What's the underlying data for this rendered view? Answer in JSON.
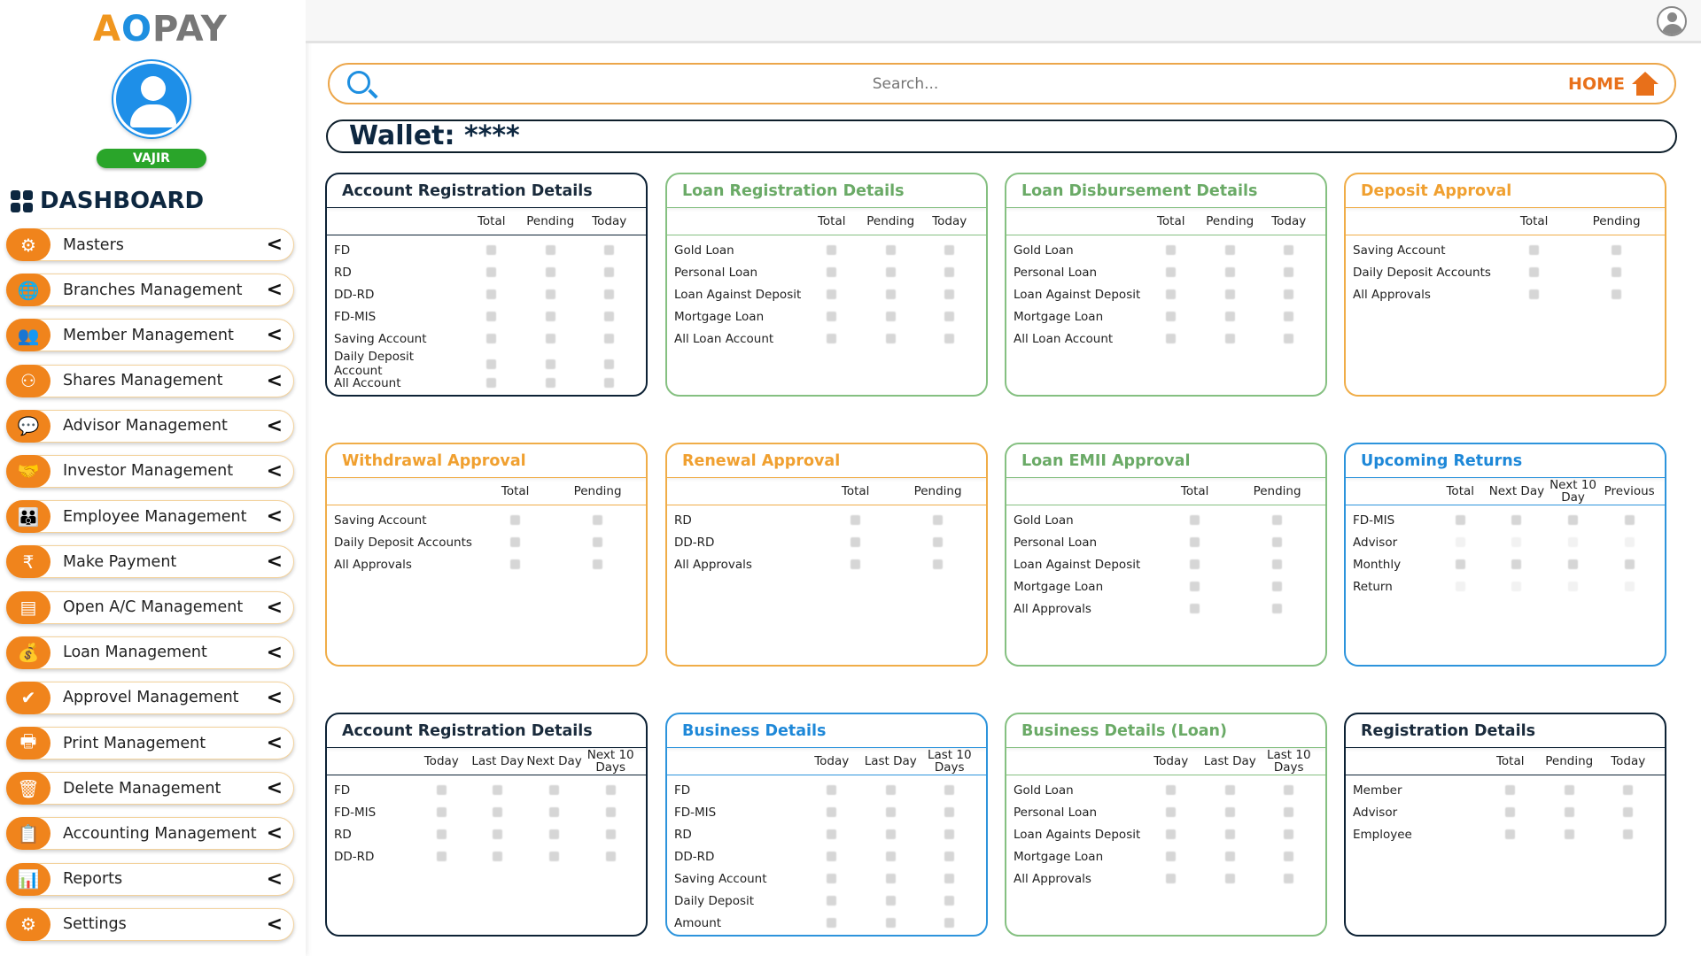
{
  "logo": {
    "text": "AOPAY",
    "part_a": "A",
    "part_o": "O",
    "part_pay": "PAY"
  },
  "user": {
    "name": "VAJIR"
  },
  "sidebar": {
    "heading": "DASHBOARD",
    "items": [
      {
        "label": "Masters",
        "icon": "user-gear-icon",
        "glyph": "⚙"
      },
      {
        "label": "Branches Management",
        "icon": "globe-icon",
        "glyph": "🌐"
      },
      {
        "label": "Member Management",
        "icon": "members-icon",
        "glyph": "👥"
      },
      {
        "label": "Shares Management",
        "icon": "share-network-icon",
        "glyph": "⚇"
      },
      {
        "label": "Advisor Management",
        "icon": "advisor-icon",
        "glyph": "💬"
      },
      {
        "label": "Investor Management",
        "icon": "investor-icon",
        "glyph": "🤝"
      },
      {
        "label": "Employee Management",
        "icon": "employee-icon",
        "glyph": "👪"
      },
      {
        "label": "Make Payment",
        "icon": "rupee-icon",
        "glyph": "₹"
      },
      {
        "label": "Open A/C Management",
        "icon": "account-icon",
        "glyph": "▤"
      },
      {
        "label": "Loan Management",
        "icon": "loan-icon",
        "glyph": "💰"
      },
      {
        "label": "Approvel Management",
        "icon": "approval-icon",
        "glyph": "✔"
      },
      {
        "label": "Print Management",
        "icon": "printer-icon",
        "glyph": "🖶"
      },
      {
        "label": "Delete Management",
        "icon": "trash-icon",
        "glyph": "🗑"
      },
      {
        "label": "Accounting Management",
        "icon": "accounting-icon",
        "glyph": "📋"
      },
      {
        "label": "Reports",
        "icon": "reports-icon",
        "glyph": "📊"
      },
      {
        "label": "Settings",
        "icon": "settings-icon",
        "glyph": "⚙"
      }
    ],
    "chevron": "<"
  },
  "search": {
    "placeholder": "Search...",
    "home_label": "HOME"
  },
  "wallet": {
    "label": "Wallet: ****"
  },
  "colors": {
    "navy": "#0d2235",
    "green": "#85c081",
    "orange": "#f0ad48",
    "blue": "#2d94dc",
    "sidebar_accent": "#f0841c",
    "user_badge": "#2aa52a"
  },
  "cards": [
    {
      "title": "Account Registration Details",
      "theme": "navy",
      "columns": [
        "Total",
        "Pending",
        "Today"
      ],
      "rows": [
        "FD",
        "RD",
        "DD-RD",
        "FD-MIS",
        "Saving Account",
        "Daily Deposit Account",
        "All Account"
      ]
    },
    {
      "title": "Loan Registration Details",
      "theme": "green",
      "columns": [
        "Total",
        "Pending",
        "Today"
      ],
      "rows": [
        "Gold Loan",
        "Personal Loan",
        "Loan Against Deposit",
        "Mortgage Loan",
        "All Loan Account"
      ]
    },
    {
      "title": "Loan Disbursement Details",
      "theme": "green",
      "columns": [
        "Total",
        "Pending",
        "Today"
      ],
      "rows": [
        "Gold Loan",
        "Personal Loan",
        "Loan Against Deposit",
        "Mortgage Loan",
        "All Loan Account"
      ]
    },
    {
      "title": "Deposit Approval",
      "theme": "orange",
      "columns": [
        "Total",
        "Pending"
      ],
      "rows": [
        "Saving Account",
        "Daily Deposit Accounts",
        "All Approvals"
      ]
    },
    {
      "title": "Withdrawal Approval",
      "theme": "orange",
      "columns": [
        "Total",
        "Pending"
      ],
      "rows": [
        "Saving Account",
        "Daily Deposit Accounts",
        "All Approvals"
      ]
    },
    {
      "title": "Renewal Approval",
      "theme": "orange",
      "columns": [
        "Total",
        "Pending"
      ],
      "rows": [
        "RD",
        "DD-RD",
        "All Approvals"
      ]
    },
    {
      "title": "Loan EMII Approval",
      "theme": "green",
      "columns": [
        "Total",
        "Pending"
      ],
      "rows": [
        "Gold Loan",
        "Personal Loan",
        "Loan Against Deposit",
        "Mortgage Loan",
        "All Approvals"
      ]
    },
    {
      "title": "Upcoming Returns",
      "theme": "blue",
      "columns": [
        "Total",
        "Next Day",
        "Next 10 Day",
        "Previous"
      ],
      "rows": [
        "FD-MIS",
        "Advisor",
        "Monthly",
        "Return"
      ],
      "faint_rows": [
        1,
        3
      ]
    },
    {
      "title": "Account Registration Details",
      "theme": "navy",
      "columns": [
        "Today",
        "Last Day",
        "Next Day",
        "Next 10 Days"
      ],
      "rows": [
        "FD",
        "FD-MIS",
        "RD",
        "DD-RD"
      ]
    },
    {
      "title": "Business Details",
      "theme": "blue",
      "columns": [
        "Today",
        "Last Day",
        "Last 10 Days"
      ],
      "rows": [
        "FD",
        "FD-MIS",
        "RD",
        "DD-RD",
        "Saving Account",
        "Daily Deposit",
        "Amount"
      ]
    },
    {
      "title": "Business Details (Loan)",
      "theme": "green",
      "columns": [
        "Today",
        "Last Day",
        "Last 10 Days"
      ],
      "rows": [
        "Gold  Loan",
        "Personal Loan",
        "Loan Againts Deposit",
        "Mortgage Loan",
        "All Approvals"
      ]
    },
    {
      "title": "Registration Details",
      "theme": "navy",
      "columns": [
        "Total",
        "Pending",
        "Today"
      ],
      "rows": [
        "Member",
        "Advisor",
        "Employee"
      ]
    }
  ]
}
